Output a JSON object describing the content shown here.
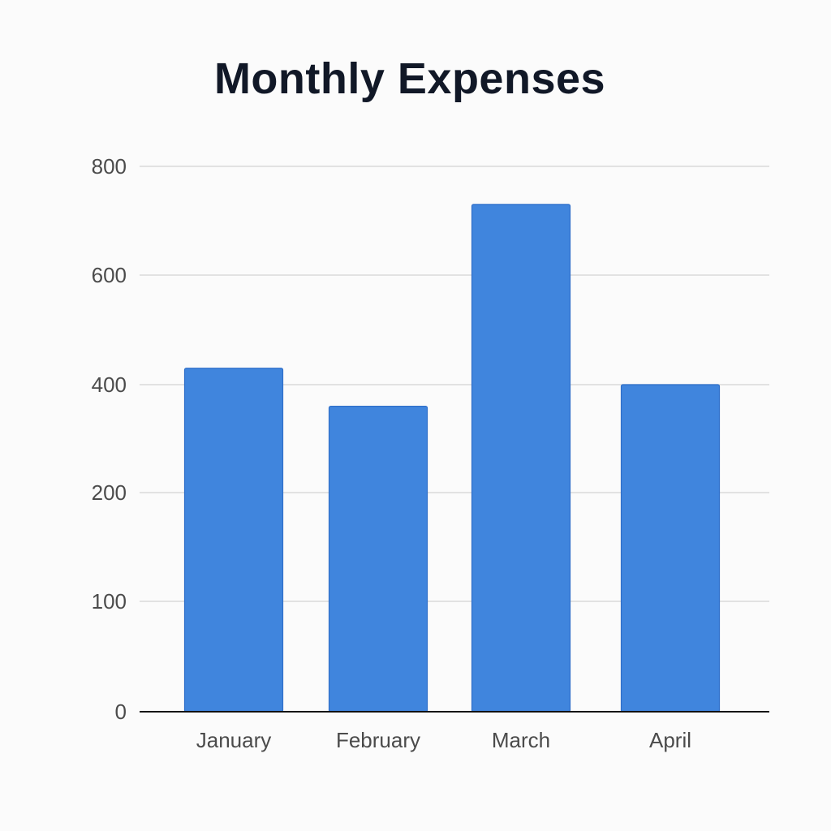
{
  "chart_data": {
    "type": "bar",
    "title": "Monthly Expenses",
    "xlabel": "",
    "ylabel": "",
    "categories": [
      "January",
      "February",
      "March",
      "April"
    ],
    "values": [
      430,
      360,
      730,
      400
    ],
    "y_ticks": [
      0,
      100,
      200,
      400,
      600,
      800
    ],
    "ylim": [
      0,
      800
    ],
    "grid": true,
    "legend": "none",
    "bar_color": "#4085dd",
    "bar_edge_color": "#2f6fc9",
    "grid_color": "#d9d9d9",
    "axis_color": "#111111"
  }
}
